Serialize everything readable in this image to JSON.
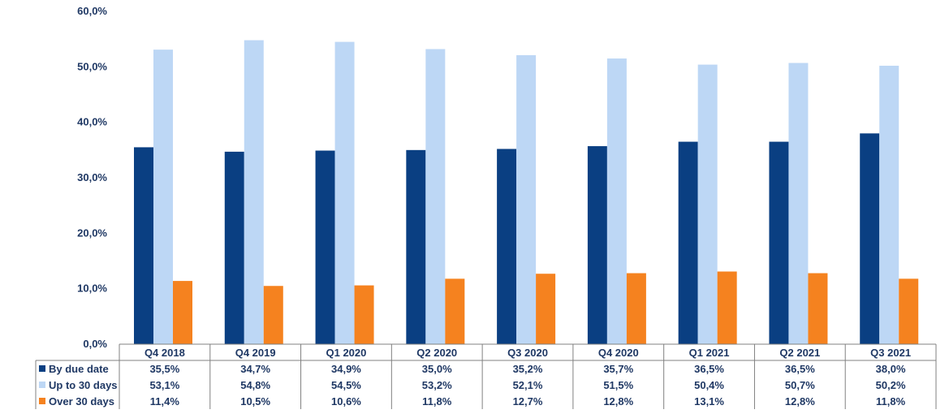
{
  "chart_data": {
    "type": "bar",
    "categories": [
      "Q4 2018",
      "Q4 2019",
      "Q1 2020",
      "Q2 2020",
      "Q3 2020",
      "Q4 2020",
      "Q1 2021",
      "Q2 2021",
      "Q3 2021"
    ],
    "series": [
      {
        "name": "By due date",
        "color": "#0a3f82",
        "values": [
          35.5,
          34.7,
          34.9,
          35.0,
          35.2,
          35.7,
          36.5,
          36.5,
          38.0
        ],
        "labels": [
          "35,5%",
          "34,7%",
          "34,9%",
          "35,0%",
          "35,2%",
          "35,7%",
          "36,5%",
          "36,5%",
          "38,0%"
        ]
      },
      {
        "name": "Up to 30 days",
        "color": "#bdd7f5",
        "values": [
          53.1,
          54.8,
          54.5,
          53.2,
          52.1,
          51.5,
          50.4,
          50.7,
          50.2
        ],
        "labels": [
          "53,1%",
          "54,8%",
          "54,5%",
          "53,2%",
          "52,1%",
          "51,5%",
          "50,4%",
          "50,7%",
          "50,2%"
        ]
      },
      {
        "name": "Over 30 days",
        "color": "#f5821f",
        "values": [
          11.4,
          10.5,
          10.6,
          11.8,
          12.7,
          12.8,
          13.1,
          12.8,
          11.8
        ],
        "labels": [
          "11,4%",
          "10,5%",
          "10,6%",
          "11,8%",
          "12,7%",
          "12,8%",
          "13,1%",
          "12,8%",
          "11,8%"
        ]
      }
    ],
    "ylim": [
      0,
      60
    ],
    "yticks": [
      0,
      10,
      20,
      30,
      40,
      50,
      60
    ],
    "ytick_labels": [
      "0,0%",
      "10,0%",
      "20,0%",
      "30,0%",
      "40,0%",
      "50,0%",
      "60,0%"
    ],
    "grid": false,
    "legend": "data-table-below",
    "title": "",
    "xlabel": "",
    "ylabel": ""
  }
}
